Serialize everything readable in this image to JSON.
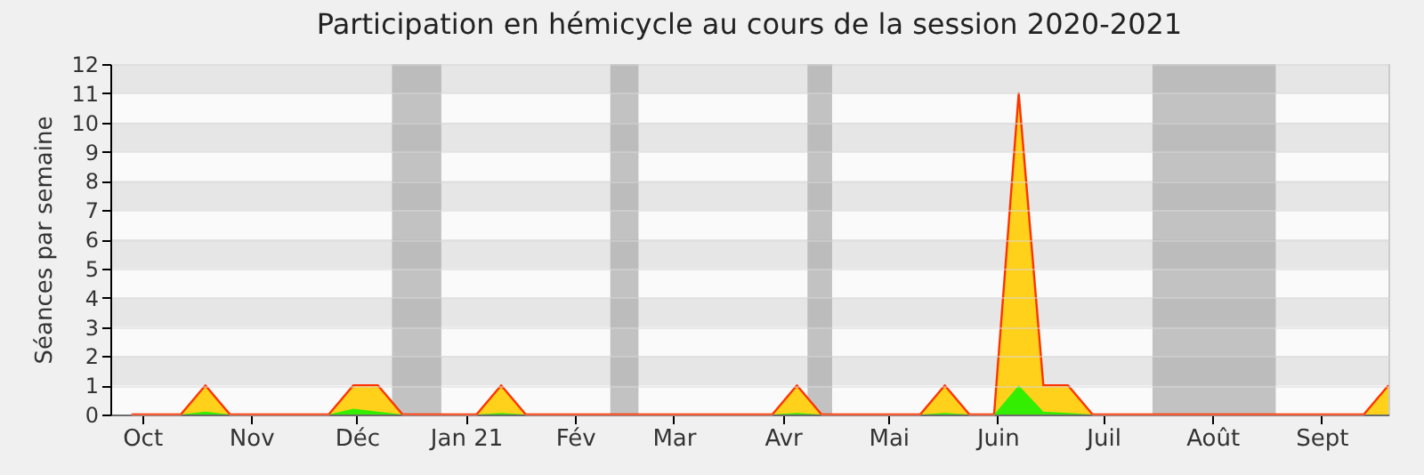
{
  "chart_data": {
    "type": "area",
    "title": "Participation en hémicycle au cours de la session 2020-2021",
    "ylabel": "Séances par semaine",
    "x": [
      "2020-09-28",
      "2020-10-05",
      "2020-10-12",
      "2020-10-19",
      "2020-10-26",
      "2020-11-02",
      "2020-11-09",
      "2020-11-16",
      "2020-11-23",
      "2020-11-30",
      "2020-12-07",
      "2020-12-14",
      "2020-12-21",
      "2020-12-28",
      "2021-01-04",
      "2021-01-11",
      "2021-01-18",
      "2021-01-25",
      "2021-02-01",
      "2021-02-08",
      "2021-02-15",
      "2021-02-22",
      "2021-03-01",
      "2021-03-08",
      "2021-03-15",
      "2021-03-22",
      "2021-03-29",
      "2021-04-05",
      "2021-04-12",
      "2021-04-19",
      "2021-04-26",
      "2021-05-03",
      "2021-05-10",
      "2021-05-17",
      "2021-05-24",
      "2021-05-31",
      "2021-06-07",
      "2021-06-14",
      "2021-06-21",
      "2021-06-28",
      "2021-07-05",
      "2021-07-12",
      "2021-07-19",
      "2021-07-26",
      "2021-08-02",
      "2021-08-09",
      "2021-08-16",
      "2021-08-23",
      "2021-08-30",
      "2021-09-06",
      "2021-09-13",
      "2021-09-20"
    ],
    "series": [
      {
        "color": "#ffd11a",
        "values": [
          0,
          0,
          0,
          1,
          0,
          0,
          0,
          0,
          0,
          1,
          1,
          0,
          0,
          0,
          0,
          1,
          0,
          0,
          0,
          0,
          0,
          0,
          0,
          0,
          0,
          0,
          0,
          1,
          0,
          0,
          0,
          0,
          0,
          1,
          0,
          0,
          11,
          1,
          1,
          0,
          0,
          0,
          0,
          0,
          0,
          0,
          0,
          0,
          0,
          0,
          0,
          1
        ]
      },
      {
        "color": "#33ee00",
        "values": [
          0,
          0,
          0,
          0.1,
          0,
          0,
          0,
          0,
          0,
          0.2,
          0.1,
          0,
          0,
          0,
          0,
          0.05,
          0,
          0,
          0,
          0,
          0,
          0,
          0,
          0,
          0,
          0,
          0,
          0.05,
          0,
          0,
          0,
          0,
          0,
          0.05,
          0,
          0,
          1,
          0.1,
          0.05,
          0,
          0,
          0,
          0,
          0,
          0,
          0,
          0,
          0,
          0,
          0,
          0,
          0
        ]
      }
    ],
    "xlim": [
      "2020-09-22",
      "2021-09-20"
    ],
    "xticks": [
      {
        "value": "2020-10-01",
        "label": "Oct"
      },
      {
        "value": "2020-11-01",
        "label": "Nov"
      },
      {
        "value": "2020-12-01",
        "label": "Déc"
      },
      {
        "value": "2021-01-01",
        "label": "Jan 21"
      },
      {
        "value": "2021-02-01",
        "label": "Fév"
      },
      {
        "value": "2021-03-01",
        "label": "Mar"
      },
      {
        "value": "2021-04-01",
        "label": "Avr"
      },
      {
        "value": "2021-05-01",
        "label": "Mai"
      },
      {
        "value": "2021-06-01",
        "label": "Juin"
      },
      {
        "value": "2021-07-01",
        "label": "Juil"
      },
      {
        "value": "2021-08-01",
        "label": "Août"
      },
      {
        "value": "2021-09-01",
        "label": "Sept"
      }
    ],
    "ylim": [
      0,
      12
    ],
    "yticks": [
      0,
      1,
      2,
      3,
      4,
      5,
      6,
      7,
      8,
      9,
      10,
      11,
      12
    ],
    "bands": [
      {
        "axis": "x",
        "from": "2020-12-11",
        "to": "2020-12-25",
        "color": "#aaaaaa"
      },
      {
        "axis": "x",
        "from": "2021-02-11",
        "to": "2021-02-19",
        "color": "#aaaaaa"
      },
      {
        "axis": "x",
        "from": "2021-04-08",
        "to": "2021-04-15",
        "color": "#aaaaaa"
      },
      {
        "axis": "x",
        "from": "2021-07-15",
        "to": "2021-08-19",
        "color": "#aaaaaa"
      }
    ],
    "grid": "y"
  }
}
